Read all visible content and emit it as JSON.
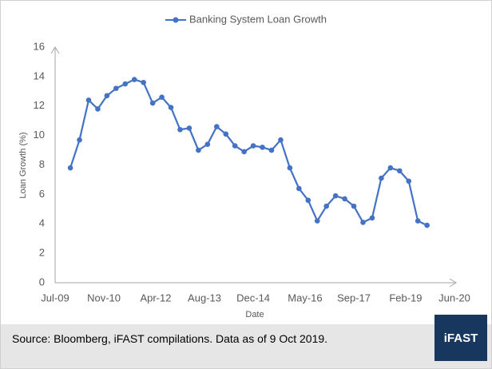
{
  "chart_data": {
    "type": "line",
    "legend": "Banking System Loan Growth",
    "x_label": "Date",
    "y_label": "Loan Growth (%)",
    "x": [
      "2009-12",
      "2010-03",
      "2010-06",
      "2010-09",
      "2010-12",
      "2011-03",
      "2011-06",
      "2011-09",
      "2011-12",
      "2012-03",
      "2012-06",
      "2012-09",
      "2012-12",
      "2013-03",
      "2013-06",
      "2013-09",
      "2013-12",
      "2014-03",
      "2014-06",
      "2014-09",
      "2014-12",
      "2015-03",
      "2015-06",
      "2015-09",
      "2015-12",
      "2016-03",
      "2016-06",
      "2016-09",
      "2016-12",
      "2017-03",
      "2017-06",
      "2017-09",
      "2017-12",
      "2018-03",
      "2018-06",
      "2018-09",
      "2018-12",
      "2019-03",
      "2019-06",
      "2019-09"
    ],
    "series": [
      {
        "name": "Banking System Loan Growth",
        "color": "#4472c4",
        "values": [
          7.8,
          9.7,
          12.4,
          11.8,
          12.7,
          13.2,
          13.5,
          13.8,
          13.6,
          12.2,
          12.6,
          11.9,
          10.4,
          10.5,
          9.0,
          9.4,
          10.6,
          10.1,
          9.3,
          8.9,
          9.3,
          9.2,
          9.0,
          9.7,
          7.8,
          6.4,
          5.6,
          4.2,
          5.2,
          5.9,
          5.7,
          5.2,
          4.1,
          4.4,
          7.1,
          7.8,
          7.6,
          6.9,
          4.2,
          3.9
        ]
      }
    ],
    "xlim": [
      "2009-07",
      "2020-06"
    ],
    "xticks": [
      {
        "value": "2009-07",
        "label": "Jul-09"
      },
      {
        "value": "2010-11",
        "label": "Nov-10"
      },
      {
        "value": "2012-04",
        "label": "Apr-12"
      },
      {
        "value": "2013-08",
        "label": "Aug-13"
      },
      {
        "value": "2014-12",
        "label": "Dec-14"
      },
      {
        "value": "2016-05",
        "label": "May-16"
      },
      {
        "value": "2017-09",
        "label": "Sep-17"
      },
      {
        "value": "2019-02",
        "label": "Feb-19"
      },
      {
        "value": "2020-06",
        "label": "Jun-20"
      }
    ],
    "ylim": [
      0,
      16
    ],
    "yticks": [
      0,
      2,
      4,
      6,
      8,
      10,
      12,
      14,
      16
    ],
    "grid": false
  },
  "footer": {
    "source": "Source: Bloomberg, iFAST compilations. Data as of 9 Oct 2019.",
    "logo": "iFAST"
  }
}
